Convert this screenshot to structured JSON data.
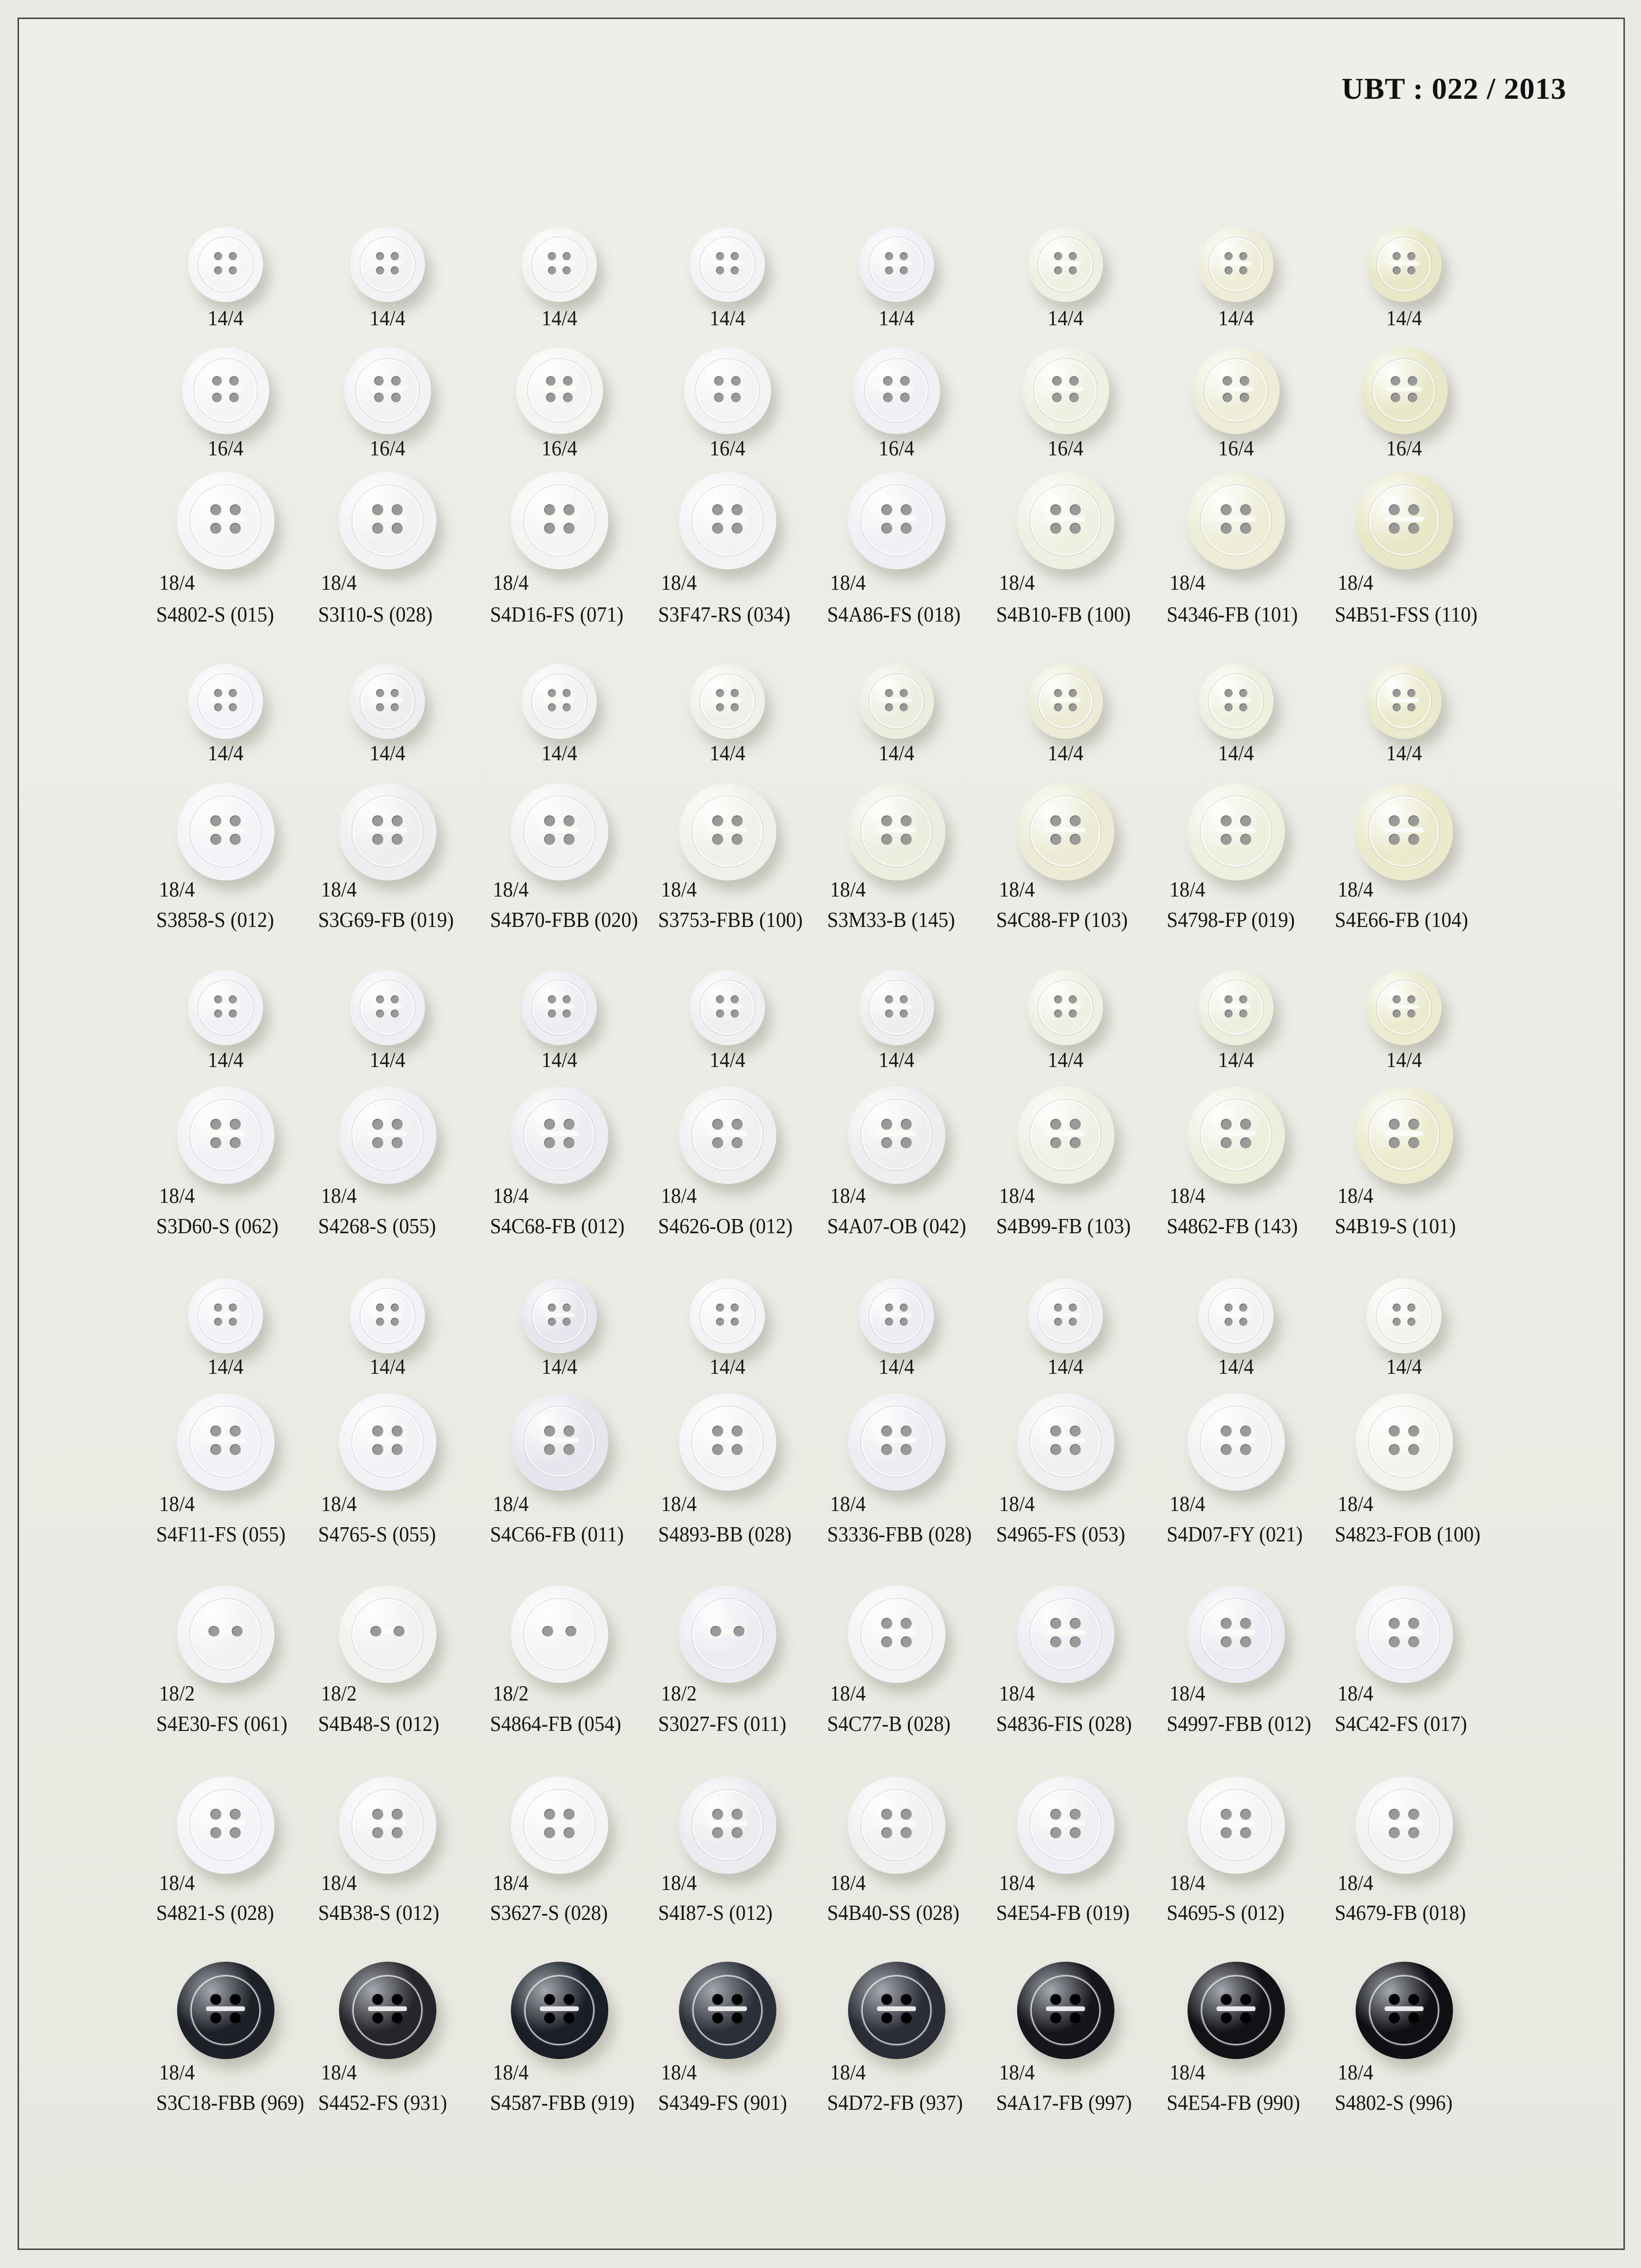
{
  "title": "UBT : 022 / 2013",
  "groups": [
    {
      "small_rows": [
        "14/4",
        "16/4"
      ],
      "items": [
        {
          "size": "18/4",
          "code": "S4802-S (015)",
          "color": "#f5f5f8"
        },
        {
          "size": "18/4",
          "code": "S3I10-S (028)",
          "color": "#f2f2f5"
        },
        {
          "size": "18/4",
          "code": "S4D16-FS (071)",
          "color": "#f4f4f2"
        },
        {
          "size": "18/4",
          "code": "S3F47-RS (034)",
          "color": "#f3f3f6"
        },
        {
          "size": "18/4",
          "code": "S4A86-FS (018)",
          "color": "#f0f0f4"
        },
        {
          "size": "18/4",
          "code": "S4B10-FB (100)",
          "color": "#efefe2"
        },
        {
          "size": "18/4",
          "code": "S4346-FB (101)",
          "color": "#ededd8"
        },
        {
          "size": "18/4",
          "code": "S4B51-FSS (110)",
          "color": "#e8e8c9"
        }
      ]
    },
    {
      "small_rows": [
        "14/4"
      ],
      "items": [
        {
          "size": "18/4",
          "code": "S3858-S (012)",
          "color": "#f3f3f7"
        },
        {
          "size": "18/4",
          "code": "S3G69-FB (019)",
          "color": "#eeeef0"
        },
        {
          "size": "18/4",
          "code": "S4B70-FBB (020)",
          "color": "#f1f1f2"
        },
        {
          "size": "18/4",
          "code": "S3753-FBB (100)",
          "color": "#f0f0ea"
        },
        {
          "size": "18/4",
          "code": "S3M33-B (145)",
          "color": "#ececdf"
        },
        {
          "size": "18/4",
          "code": "S4C88-FP (103)",
          "color": "#ebebd6"
        },
        {
          "size": "18/4",
          "code": "S4798-FP (019)",
          "color": "#efefdf"
        },
        {
          "size": "18/4",
          "code": "S4E66-FB (104)",
          "color": "#eaeacd"
        }
      ]
    },
    {
      "small_rows": [
        "14/4"
      ],
      "items": [
        {
          "size": "18/4",
          "code": "S3D60-S (062)",
          "color": "#f1f1f5"
        },
        {
          "size": "18/4",
          "code": "S4268-S (055)",
          "color": "#efeff3"
        },
        {
          "size": "18/4",
          "code": "S4C68-FB (012)",
          "color": "#ececf1"
        },
        {
          "size": "18/4",
          "code": "S4626-OB (012)",
          "color": "#efeff2"
        },
        {
          "size": "18/4",
          "code": "S4A07-OB (042)",
          "color": "#eeeef0"
        },
        {
          "size": "18/4",
          "code": "S4B99-FB (103)",
          "color": "#efefe3"
        },
        {
          "size": "18/4",
          "code": "S4862-FB (143)",
          "color": "#eeeedf"
        },
        {
          "size": "18/4",
          "code": "S4B19-S (101)",
          "color": "#ebebcf"
        }
      ]
    },
    {
      "small_rows": [
        "14/4"
      ],
      "items": [
        {
          "size": "18/4",
          "code": "S4F11-FS (055)",
          "color": "#f1f1f6"
        },
        {
          "size": "18/4",
          "code": "S4765-S (055)",
          "color": "#f2f2f6"
        },
        {
          "size": "18/4",
          "code": "S4C66-FB (011)",
          "color": "#e6e6ee"
        },
        {
          "size": "18/4",
          "code": "S4893-BB (028)",
          "color": "#f3f3f6"
        },
        {
          "size": "18/4",
          "code": "S3336-FBB (028)",
          "color": "#ececf2"
        },
        {
          "size": "18/4",
          "code": "S4965-FS (053)",
          "color": "#efeff1"
        },
        {
          "size": "18/4",
          "code": "S4D07-FY (021)",
          "color": "#f2f2f2"
        },
        {
          "size": "18/4",
          "code": "S4823-FOB (100)",
          "color": "#f3f3ee"
        }
      ]
    },
    {
      "small_rows": [],
      "items": [
        {
          "size": "18/2",
          "code": "S4E30-FS (061)",
          "color": "#f2f2f5"
        },
        {
          "size": "18/2",
          "code": "S4B48-S (012)",
          "color": "#f1f1ef"
        },
        {
          "size": "18/2",
          "code": "S4864-FB (054)",
          "color": "#f3f3f3"
        },
        {
          "size": "18/2",
          "code": "S3027-FS (011)",
          "color": "#ebebf2"
        },
        {
          "size": "18/4",
          "code": "S4C77-B (028)",
          "color": "#f3f3f5"
        },
        {
          "size": "18/4",
          "code": "S4836-FIS (028)",
          "color": "#ececf2"
        },
        {
          "size": "18/4",
          "code": "S4997-FBB (012)",
          "color": "#ebebf1"
        },
        {
          "size": "18/4",
          "code": "S4C42-FS (017)",
          "color": "#efeff3"
        }
      ]
    },
    {
      "small_rows": [],
      "items": [
        {
          "size": "18/4",
          "code": "S4821-S (028)",
          "color": "#f4f4f8"
        },
        {
          "size": "18/4",
          "code": "S4B38-S (012)",
          "color": "#f1f1f3"
        },
        {
          "size": "18/4",
          "code": "S3627-S (028)",
          "color": "#f4f4f5"
        },
        {
          "size": "18/4",
          "code": "S4I87-S (012)",
          "color": "#ececf0"
        },
        {
          "size": "18/4",
          "code": "S4B40-SS (028)",
          "color": "#f0f0f1"
        },
        {
          "size": "18/4",
          "code": "S4E54-FB (019)",
          "color": "#eeeff2"
        },
        {
          "size": "18/4",
          "code": "S4695-S (012)",
          "color": "#f3f3f3"
        },
        {
          "size": "18/4",
          "code": "S4679-FB (018)",
          "color": "#f1f1f1"
        }
      ]
    },
    {
      "small_rows": [],
      "dark": true,
      "items": [
        {
          "size": "18/4",
          "code": "S3C18-FBB (969)",
          "color": "#1d2027"
        },
        {
          "size": "18/4",
          "code": "S4452-FS (931)",
          "color": "#24262b"
        },
        {
          "size": "18/4",
          "code": "S4587-FBB (919)",
          "color": "#1a1e26"
        },
        {
          "size": "18/4",
          "code": "S4349-FS (901)",
          "color": "#2b2f38"
        },
        {
          "size": "18/4",
          "code": "S4D72-FB (937)",
          "color": "#2a2d36"
        },
        {
          "size": "18/4",
          "code": "S4A17-FB (997)",
          "color": "#14161c"
        },
        {
          "size": "18/4",
          "code": "S4E54-FB (990)",
          "color": "#101216"
        },
        {
          "size": "18/4",
          "code": "S4802-S (996)",
          "color": "#0e1014"
        }
      ]
    }
  ]
}
